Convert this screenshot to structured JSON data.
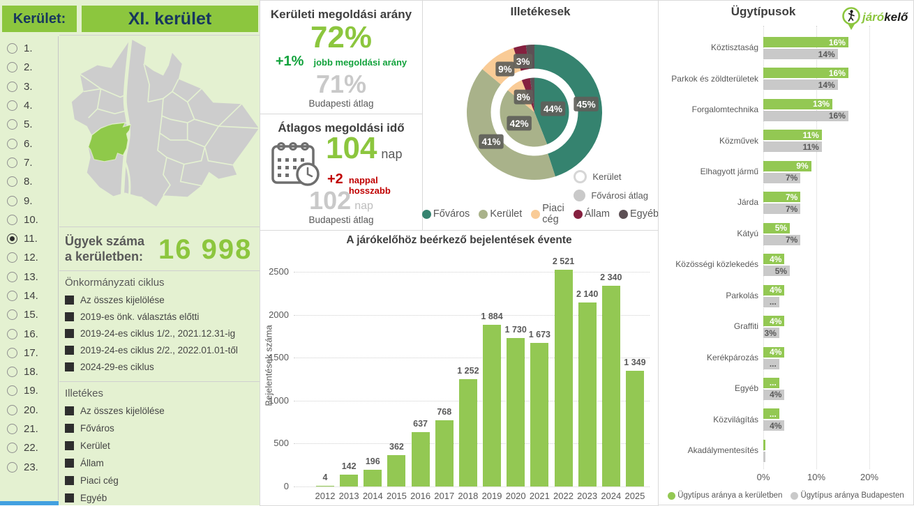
{
  "header": {
    "label": "Kerület:",
    "value": "XI. kerület"
  },
  "district_selector": {
    "items": [
      "1.",
      "2.",
      "3.",
      "4.",
      "5.",
      "6.",
      "7.",
      "8.",
      "9.",
      "10.",
      "11.",
      "12.",
      "13.",
      "14.",
      "15.",
      "16.",
      "17.",
      "18.",
      "19.",
      "20.",
      "21.",
      "22.",
      "23."
    ],
    "selected": "11."
  },
  "case_count": {
    "title_line1": "Ügyek száma",
    "title_line2": "a kerületben:",
    "value": "16 998"
  },
  "cycle_filter": {
    "title": "Önkormányzati ciklus",
    "options": [
      "Az összes kijelölése",
      "2019-es önk. választás előtti",
      "2019-24-es ciklus 1/2., 2021.12.31-ig",
      "2019-24-es ciklus 2/2., 2022.01.01-től",
      "2024-29-es ciklus"
    ]
  },
  "responsible_filter": {
    "title": "Illetékes",
    "options": [
      "Az összes kijelölése",
      "Főváros",
      "Kerület",
      "Állam",
      "Piaci cég",
      "Egyéb"
    ]
  },
  "kpi_resolution": {
    "title": "Kerületi megoldási arány",
    "value": "72%",
    "delta": "+1%",
    "delta_label": "jobb megoldási arány",
    "average": "71%",
    "average_label": "Budapesti átlag"
  },
  "kpi_time": {
    "title": "Átlagos megoldási idő",
    "value": "104",
    "unit": "nap",
    "delta": "+2",
    "delta_label": "nappal hosszabb",
    "average": "102",
    "average_unit": "nap",
    "average_label": "Budapesti átlag"
  },
  "logo": {
    "text_green": "járó",
    "text_dark": "kelő"
  },
  "colors": {
    "brand_green": "#8cc63e",
    "bar_green": "#93c853",
    "dark_green": "#12a23c",
    "light_green_bg": "#e4f1d1",
    "navy": "#17375e",
    "red": "#c00000",
    "gray_text": "#595959",
    "light_gray_value": "#c9c9c9",
    "bar_gray": "#c9c9c9",
    "teal": "#35836f",
    "sage": "#a9b28a",
    "peach": "#f9cb96",
    "maroon": "#85203f",
    "dark_other": "#5d5055",
    "label_bg": "#60605a",
    "scrollbar_blue": "#42a0e0",
    "map_gray": "#cdcdcd"
  },
  "chart_data": [
    {
      "type": "pie",
      "title": "Illetékesek",
      "categories": [
        "Főváros",
        "Kerület",
        "Piaci cég",
        "Állam",
        "Egyéb"
      ],
      "colors": [
        "#35836f",
        "#a9b28a",
        "#f9cb96",
        "#85203f",
        "#5d5055"
      ],
      "series": [
        {
          "name": "Kerület",
          "values": [
            45,
            41,
            9,
            3,
            2
          ],
          "labels": [
            "45%",
            "41%",
            "9%",
            "3%",
            ""
          ]
        },
        {
          "name": "Fővárosi átlag",
          "values": [
            44,
            42,
            8,
            4,
            2
          ],
          "labels": [
            "44%",
            "42%",
            "8%",
            "",
            ""
          ]
        }
      ],
      "ring_legend": [
        {
          "label": "Kerület",
          "style": "ring"
        },
        {
          "label": "Fővárosi átlag",
          "style": "filled"
        }
      ],
      "legend_position": "bottom"
    },
    {
      "type": "bar",
      "title": "A járókelőhöz beérkező bejelentések évente",
      "ylabel": "Bejelentések száma",
      "categories": [
        "2012",
        "2013",
        "2014",
        "2015",
        "2016",
        "2017",
        "2018",
        "2019",
        "2020",
        "2021",
        "2022",
        "2023",
        "2024",
        "2025"
      ],
      "values": [
        4,
        142,
        196,
        362,
        637,
        768,
        1252,
        1884,
        1730,
        1673,
        2521,
        2140,
        2340,
        1349
      ],
      "value_labels": [
        "4",
        "142",
        "196",
        "362",
        "637",
        "768",
        "1 252",
        "1 884",
        "1 730",
        "1 673",
        "2 521",
        "2 140",
        "2 340",
        "1 349"
      ],
      "ylim": [
        0,
        2500
      ],
      "yticks": [
        0,
        500,
        1000,
        1500,
        2000,
        2500
      ],
      "grid": "dotted-horizontal"
    },
    {
      "type": "bar",
      "orientation": "horizontal",
      "title": "Ügytípusok",
      "categories": [
        "Köztisztaság",
        "Parkok és zöldterületek",
        "Forgalomtechnika",
        "Közművek",
        "Elhagyott jármű",
        "Járda",
        "Kátyú",
        "Közösségi közlekedés",
        "Parkolás",
        "Graffiti",
        "Kerékpározás",
        "Egyéb",
        "Közvilágítás",
        "Akadálymentesítés"
      ],
      "series": [
        {
          "name": "Ügytípus aránya a kerületben",
          "values": [
            16,
            16,
            13,
            11,
            9,
            7,
            5,
            4,
            4,
            4,
            4,
            3,
            3,
            0.3
          ],
          "labels": [
            "16%",
            "16%",
            "13%",
            "11%",
            "9%",
            "7%",
            "5%",
            "4%",
            "4%",
            "4%",
            "4%",
            "...",
            "...",
            ""
          ]
        },
        {
          "name": "Ügytípus aránya Budapesten",
          "values": [
            14,
            14,
            16,
            11,
            7,
            7,
            7,
            5,
            3,
            3,
            3,
            4,
            4,
            0.3
          ],
          "labels": [
            "14%",
            "14%",
            "16%",
            "11%",
            "7%",
            "7%",
            "7%",
            "5%",
            "...",
            "3%",
            "...",
            "4%",
            "4%",
            ""
          ]
        }
      ],
      "xticks": [
        "0%",
        "10%",
        "20%"
      ],
      "xlim": [
        0,
        26
      ],
      "legend_position": "bottom"
    }
  ]
}
